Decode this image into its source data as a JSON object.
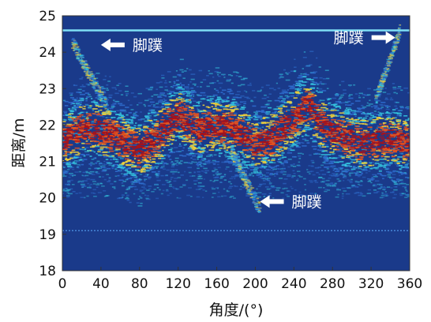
{
  "chart_data": {
    "type": "heatmap",
    "xlabel": "角度/(°)",
    "ylabel": "距离/m",
    "xlim": [
      0,
      360
    ],
    "ylim": [
      18,
      25
    ],
    "xticks": [
      "0",
      "40",
      "80",
      "120",
      "160",
      "200",
      "240",
      "280",
      "320",
      "360"
    ],
    "yticks": [
      "18",
      "19",
      "20",
      "21",
      "22",
      "23",
      "24",
      "25"
    ],
    "background_color": "#1a3a8a",
    "colormap": [
      "#1a3a8a",
      "#2f6fd0",
      "#35c7e0",
      "#f2d43a",
      "#e8541e",
      "#a8121a"
    ],
    "features": {
      "surface_line": {
        "y": 24.6
      },
      "faint_line": {
        "y": 19.1
      },
      "main_band": {
        "angles": [
          0,
          20,
          40,
          60,
          80,
          100,
          120,
          140,
          160,
          180,
          200,
          220,
          240,
          255,
          270,
          290,
          310,
          330,
          350,
          360
        ],
        "center_m": [
          21.6,
          21.9,
          21.9,
          21.6,
          21.3,
          21.7,
          22.3,
          21.9,
          22.0,
          21.9,
          21.5,
          21.7,
          22.2,
          22.6,
          22.0,
          21.7,
          21.5,
          21.6,
          21.6,
          21.5
        ]
      }
    },
    "annotations": [
      {
        "text": "脚蹼",
        "x": 40,
        "y": 24.2,
        "arrow": "left"
      },
      {
        "text": "脚蹼",
        "x": 345,
        "y": 24.4,
        "arrow": "right"
      },
      {
        "text": "脚蹼",
        "x": 205,
        "y": 19.9,
        "arrow": "left"
      }
    ]
  }
}
